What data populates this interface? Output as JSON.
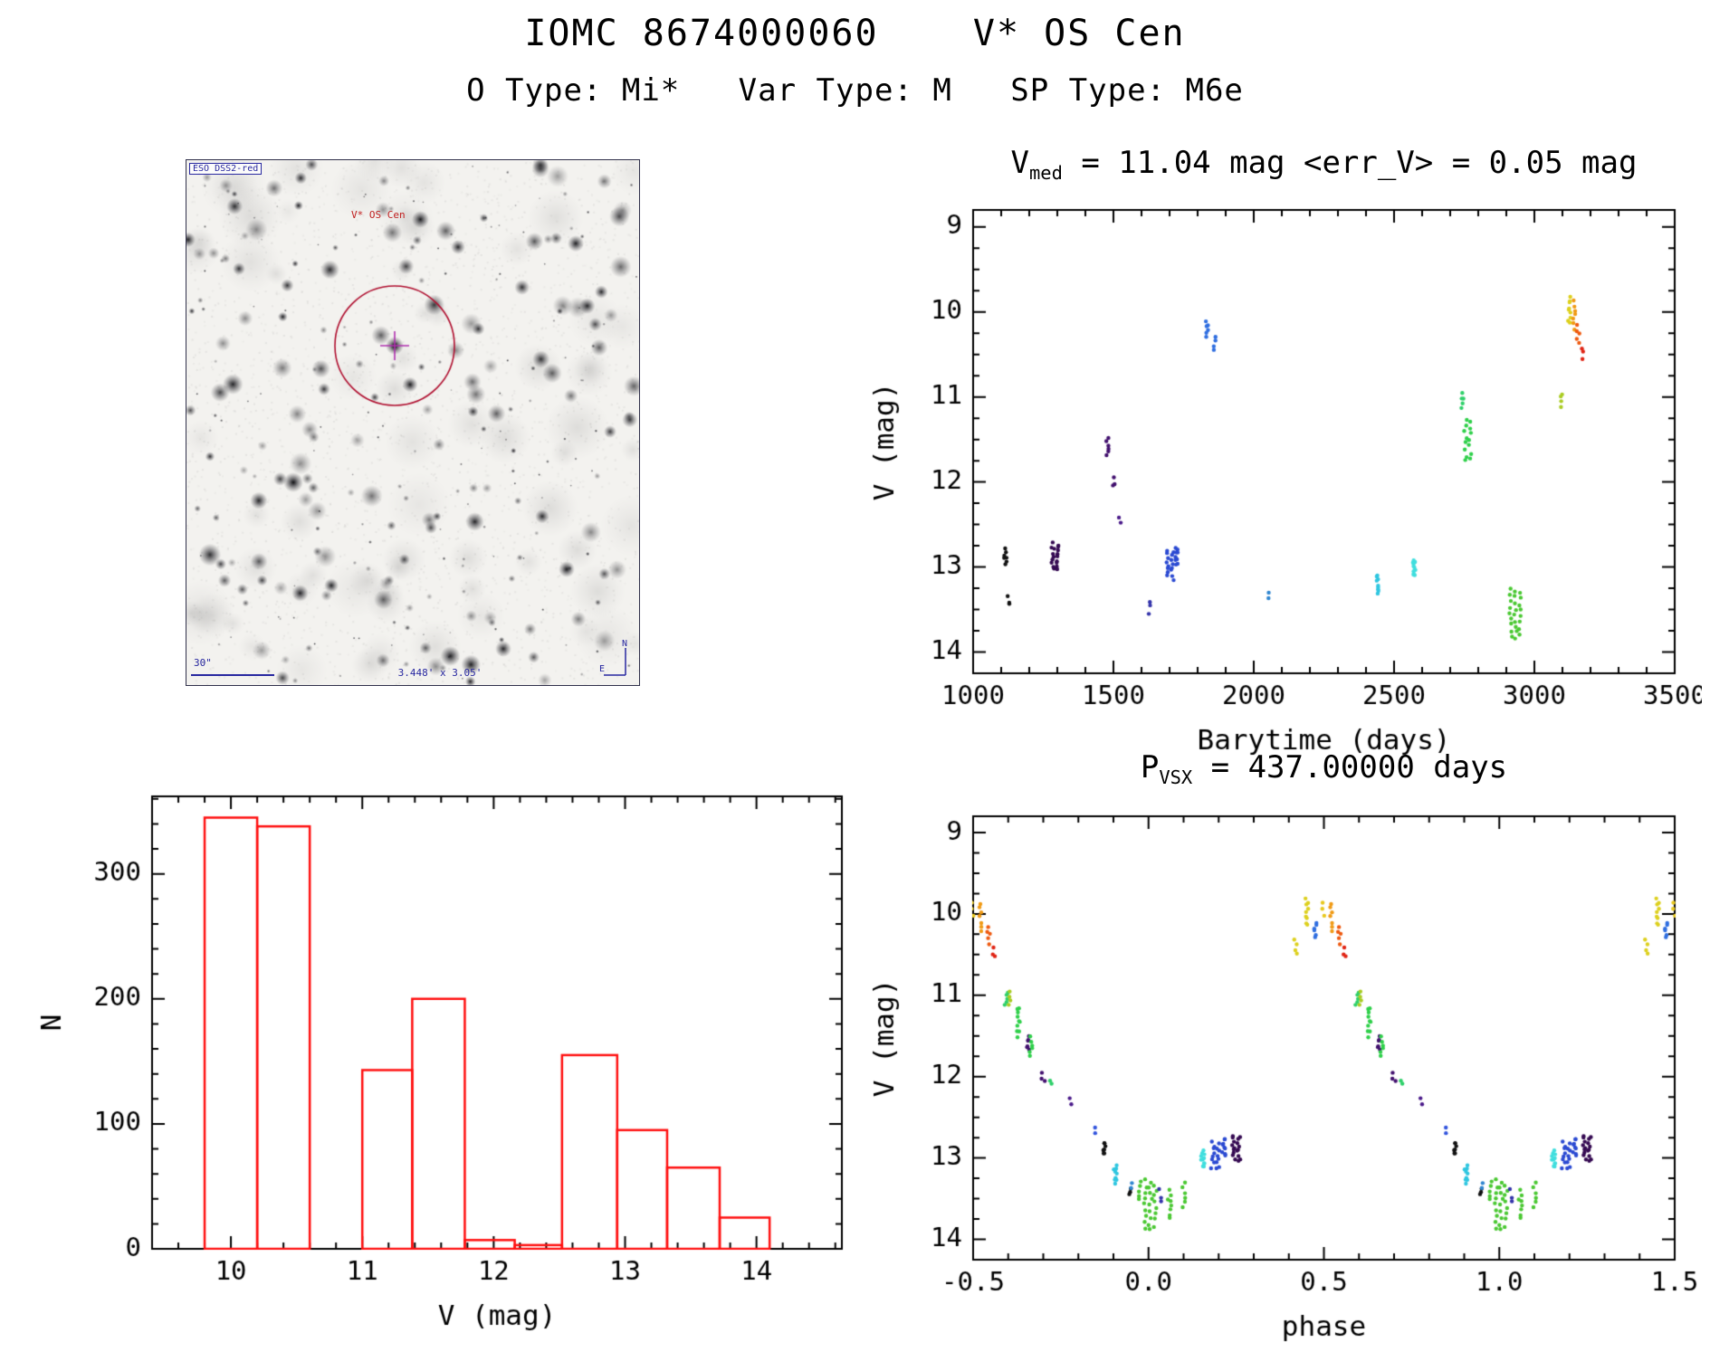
{
  "header": {
    "title": "IOMC 8674000060    V* OS Cen",
    "subtitle": "O Type: Mi*   Var Type: M   SP Type: M6e"
  },
  "finding_chart": {
    "survey_label": "ESO DSS2-red",
    "target_label": "V* OS Cen",
    "scale_bar_label": "30\"",
    "fov_label": "3.448' x 3.05'",
    "compass_north": "N",
    "compass_east": "E",
    "colors": {
      "circle": "#b01030",
      "target_text": "#c02020",
      "annotation": "#2828a0",
      "crosshair": "#b030b0"
    }
  },
  "chart_data": [
    {
      "id": "lightcurve",
      "type": "scatter",
      "title_segments": [
        {
          "t": "V"
        },
        {
          "t": "med",
          "sub": true
        },
        {
          "t": " = 11.04 mag <err_V> = 0.05 mag"
        }
      ],
      "xlabel": "Barytime (days)",
      "ylabel": "V (mag)",
      "xlim": [
        1000,
        3500
      ],
      "ylim_top": 8.8,
      "ylim_bottom": 14.25,
      "xticks": [
        1000,
        1500,
        2000,
        2500,
        3000,
        3500
      ],
      "yticks": [
        9,
        10,
        11,
        12,
        13,
        14
      ],
      "x_minor": 100,
      "y_minor": 0.25,
      "x_jitter": 5,
      "col_spacing": 16,
      "legend": "none",
      "grid": false,
      "clusters": [
        {
          "x": 1115,
          "y0": 12.8,
          "y1": 12.96,
          "n": 7,
          "c": "#111111"
        },
        {
          "x": 1128,
          "y0": 13.36,
          "y1": 13.44,
          "n": 3,
          "c": "#111111"
        },
        {
          "x": 1292,
          "y0": 12.72,
          "y1": 13.04,
          "n": 18,
          "c": "#350a52"
        },
        {
          "x": 1478,
          "y0": 11.5,
          "y1": 11.68,
          "n": 6,
          "c": "#42106e"
        },
        {
          "x": 1500,
          "y0": 11.96,
          "y1": 12.06,
          "n": 3,
          "c": "#42106e"
        },
        {
          "x": 1522,
          "y0": 12.42,
          "y1": 12.48,
          "n": 2,
          "c": "#4a1a8a"
        },
        {
          "x": 1628,
          "y0": 13.4,
          "y1": 13.54,
          "n": 3,
          "c": "#3333aa"
        },
        {
          "x": 1702,
          "y0": 12.8,
          "y1": 13.14,
          "n": 16,
          "c": "#2b4ad2"
        },
        {
          "x": 1726,
          "y0": 12.76,
          "y1": 12.98,
          "n": 9,
          "c": "#2b4ad2"
        },
        {
          "x": 1832,
          "y0": 10.12,
          "y1": 10.28,
          "n": 6,
          "c": "#2f6ee0"
        },
        {
          "x": 1860,
          "y0": 10.3,
          "y1": 10.46,
          "n": 4,
          "c": "#2f6ee0"
        },
        {
          "x": 2055,
          "y0": 13.32,
          "y1": 13.38,
          "n": 2,
          "c": "#2f86d0"
        },
        {
          "x": 2440,
          "y0": 13.1,
          "y1": 13.3,
          "n": 9,
          "c": "#2fc6e0"
        },
        {
          "x": 2572,
          "y0": 12.92,
          "y1": 13.1,
          "n": 11,
          "c": "#40dede"
        },
        {
          "x": 2745,
          "y0": 10.96,
          "y1": 11.12,
          "n": 5,
          "c": "#2fd06a"
        },
        {
          "x": 2763,
          "y0": 11.26,
          "y1": 11.76,
          "n": 15,
          "c": "#2fd04a"
        },
        {
          "x": 2932,
          "y0": 13.26,
          "y1": 13.84,
          "n": 26,
          "c": "#4ac832"
        },
        {
          "x": 3098,
          "y0": 10.96,
          "y1": 11.12,
          "n": 4,
          "c": "#aacc22"
        },
        {
          "x": 3124,
          "y0": 9.82,
          "y1": 10.14,
          "n": 9,
          "c": "#ddd01e"
        },
        {
          "x": 3142,
          "y0": 9.88,
          "y1": 10.2,
          "n": 7,
          "c": "#f09a14"
        },
        {
          "x": 3156,
          "y0": 10.16,
          "y1": 10.36,
          "n": 5,
          "c": "#ee5a10"
        },
        {
          "x": 3170,
          "y0": 10.42,
          "y1": 10.54,
          "n": 3,
          "c": "#e02414"
        }
      ]
    },
    {
      "id": "histogram",
      "type": "bar",
      "xlabel": "V (mag)",
      "ylabel": "N",
      "xlim": [
        9.4,
        14.65
      ],
      "ylim": [
        0,
        362
      ],
      "xticks": [
        10,
        11,
        12,
        13,
        14
      ],
      "yticks": [
        0,
        100,
        200,
        300
      ],
      "x_minor": 0.2,
      "y_minor": 20,
      "bar_color": "#ff1010",
      "grid": false,
      "bins": [
        {
          "x0": 9.8,
          "x1": 10.2,
          "n": 345
        },
        {
          "x0": 10.2,
          "x1": 10.6,
          "n": 338
        },
        {
          "x0": 10.6,
          "x1": 11.0,
          "n": 0
        },
        {
          "x0": 11.0,
          "x1": 11.38,
          "n": 143
        },
        {
          "x0": 11.38,
          "x1": 11.78,
          "n": 200
        },
        {
          "x0": 11.78,
          "x1": 12.16,
          "n": 7
        },
        {
          "x0": 12.16,
          "x1": 12.52,
          "n": 3
        },
        {
          "x0": 12.52,
          "x1": 12.94,
          "n": 155
        },
        {
          "x0": 12.94,
          "x1": 13.32,
          "n": 95
        },
        {
          "x0": 13.32,
          "x1": 13.72,
          "n": 65
        },
        {
          "x0": 13.72,
          "x1": 14.1,
          "n": 25
        }
      ]
    },
    {
      "id": "phased",
      "type": "scatter",
      "phase_wrap": true,
      "title_segments": [
        {
          "t": "P"
        },
        {
          "t": "VSX",
          "sub": true
        },
        {
          "t": " = 437.00000 days"
        }
      ],
      "xlabel": "phase",
      "ylabel": "V (mag)",
      "xlim": [
        -0.5,
        1.5
      ],
      "ylim_top": 8.8,
      "ylim_bottom": 14.25,
      "xticks": [
        -0.5,
        0.0,
        0.5,
        1.0,
        1.5
      ],
      "xtick_labels": [
        "-0.5",
        "0.0",
        "0.5",
        "1.0",
        "1.5"
      ],
      "yticks": [
        9,
        10,
        11,
        12,
        13,
        14
      ],
      "x_minor": 0.1,
      "y_minor": 0.25,
      "x_jitter": 0.005,
      "col_spacing": 0.014,
      "grid": false,
      "clusters": [
        {
          "x": 0.005,
          "y0": 13.28,
          "y1": 13.88,
          "n": 26,
          "c": "#4ac832"
        },
        {
          "x": 0.035,
          "y0": 13.4,
          "y1": 13.54,
          "n": 3,
          "c": "#3333aa"
        },
        {
          "x": 0.06,
          "y0": 13.4,
          "y1": 13.74,
          "n": 8,
          "c": "#4ac832"
        },
        {
          "x": 0.1,
          "y0": 13.32,
          "y1": 13.6,
          "n": 6,
          "c": "#4ac832"
        },
        {
          "x": 0.155,
          "y0": 12.92,
          "y1": 13.12,
          "n": 11,
          "c": "#40dede"
        },
        {
          "x": 0.19,
          "y0": 12.8,
          "y1": 13.14,
          "n": 16,
          "c": "#2b4ad2"
        },
        {
          "x": 0.215,
          "y0": 12.76,
          "y1": 12.98,
          "n": 9,
          "c": "#2b4ad2"
        },
        {
          "x": 0.25,
          "y0": 12.72,
          "y1": 13.04,
          "n": 18,
          "c": "#350a52"
        },
        {
          "x": 0.42,
          "y0": 10.3,
          "y1": 10.5,
          "n": 4,
          "c": "#ddd01e"
        },
        {
          "x": 0.45,
          "y0": 9.82,
          "y1": 10.14,
          "n": 9,
          "c": "#ddd01e"
        },
        {
          "x": 0.475,
          "y0": 10.12,
          "y1": 10.28,
          "n": 6,
          "c": "#2f6ee0"
        },
        {
          "x": 0.498,
          "y0": 9.88,
          "y1": 10.02,
          "n": 3,
          "c": "#e8c81e"
        },
        {
          "x": 0.52,
          "y0": 9.88,
          "y1": 10.2,
          "n": 7,
          "c": "#f09a14"
        },
        {
          "x": 0.545,
          "y0": 10.16,
          "y1": 10.36,
          "n": 5,
          "c": "#ee5a10"
        },
        {
          "x": 0.56,
          "y0": 10.42,
          "y1": 10.54,
          "n": 3,
          "c": "#e02414"
        },
        {
          "x": 0.595,
          "y0": 10.96,
          "y1": 11.12,
          "n": 5,
          "c": "#2fd06a"
        },
        {
          "x": 0.605,
          "y0": 10.96,
          "y1": 11.12,
          "n": 4,
          "c": "#aacc22"
        },
        {
          "x": 0.63,
          "y0": 11.15,
          "y1": 11.5,
          "n": 10,
          "c": "#2fd04a"
        },
        {
          "x": 0.655,
          "y0": 11.5,
          "y1": 11.68,
          "n": 6,
          "c": "#42106e"
        },
        {
          "x": 0.665,
          "y0": 11.52,
          "y1": 11.76,
          "n": 6,
          "c": "#2fd04a"
        },
        {
          "x": 0.7,
          "y0": 11.96,
          "y1": 12.06,
          "n": 3,
          "c": "#42106e"
        },
        {
          "x": 0.72,
          "y0": 12.04,
          "y1": 12.1,
          "n": 2,
          "c": "#2fd06a"
        },
        {
          "x": 0.775,
          "y0": 12.28,
          "y1": 12.34,
          "n": 2,
          "c": "#4a1a8a"
        },
        {
          "x": 0.845,
          "y0": 12.62,
          "y1": 12.68,
          "n": 2,
          "c": "#3355dd"
        },
        {
          "x": 0.875,
          "y0": 12.8,
          "y1": 12.96,
          "n": 7,
          "c": "#111111"
        },
        {
          "x": 0.905,
          "y0": 13.1,
          "y1": 13.3,
          "n": 9,
          "c": "#2fc6e0"
        },
        {
          "x": 0.945,
          "y0": 13.36,
          "y1": 13.44,
          "n": 3,
          "c": "#111111"
        },
        {
          "x": 0.955,
          "y0": 13.32,
          "y1": 13.38,
          "n": 2,
          "c": "#2f86d0"
        },
        {
          "x": 0.975,
          "y0": 13.3,
          "y1": 13.5,
          "n": 5,
          "c": "#4ac832"
        }
      ]
    }
  ]
}
